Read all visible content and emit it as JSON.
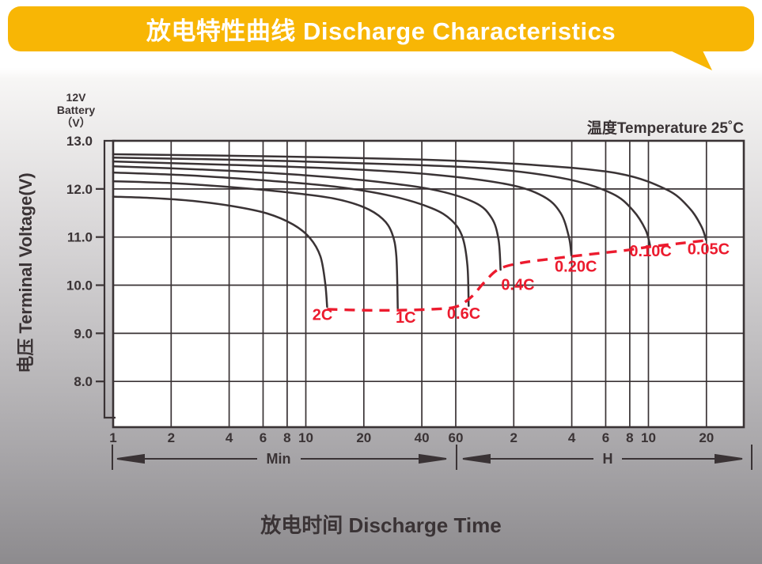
{
  "header": {
    "title": "放电特性曲线 Discharge Characteristics"
  },
  "colors": {
    "banner_yellow": "#F8B605",
    "ink": "#3A3335",
    "capacity_red": "#EC1B2E",
    "plot_bg": "#FFFFFF"
  },
  "chart_meta": {
    "battery_label": [
      "12V",
      "Battery",
      "（V）"
    ],
    "temperature_note": "温度Temperature 25˚C",
    "y_axis_title": "电压 Terminal Voltage(V)",
    "x_axis_title": "放电时间 Discharge Time",
    "minutes_range_label": "Min",
    "hours_range_label": "H"
  },
  "chart_data": {
    "type": "line",
    "title": "Discharge Characteristics, 12V battery, 25°C",
    "x_axis": {
      "scale": "log",
      "unit": "minutes (1–60) then hours (1–20)",
      "min": 1,
      "max": 1875,
      "ticks_minutes": [
        1,
        2,
        4,
        6,
        8,
        10,
        20,
        40,
        60,
        120,
        240,
        360,
        480,
        600,
        1200
      ],
      "tick_labels": [
        "1",
        "2",
        "4",
        "6",
        "8",
        "10",
        "20",
        "40",
        "60",
        "2",
        "4",
        "6",
        "8",
        "10",
        "20"
      ]
    },
    "y_axis": {
      "label": "Terminal Voltage (V)",
      "min": 7.05,
      "max": 13.0,
      "ticks": [
        13,
        12,
        11,
        10,
        9,
        8
      ],
      "tick_labels": [
        "13.0",
        "12.0",
        "11.0",
        "10.0",
        "9.0",
        "8.0"
      ]
    },
    "grid": true,
    "series": [
      {
        "name": "2C",
        "points_t_min_vs_V": [
          [
            1,
            11.84
          ],
          [
            1.6,
            11.81
          ],
          [
            2.6,
            11.75
          ],
          [
            4.2,
            11.64
          ],
          [
            6.3,
            11.49
          ],
          [
            8.6,
            11.26
          ],
          [
            10.5,
            10.98
          ],
          [
            11.9,
            10.6
          ],
          [
            12.6,
            10.05
          ],
          [
            12.9,
            9.55
          ]
        ]
      },
      {
        "name": "1C",
        "points_t_min_vs_V": [
          [
            1,
            12.16
          ],
          [
            2,
            12.12
          ],
          [
            4,
            12.04
          ],
          [
            8,
            11.93
          ],
          [
            14,
            11.8
          ],
          [
            20,
            11.62
          ],
          [
            25,
            11.38
          ],
          [
            28,
            11.08
          ],
          [
            29.5,
            10.6
          ],
          [
            30,
            9.52
          ]
        ]
      },
      {
        "name": "0.6C",
        "points_t_min_vs_V": [
          [
            1,
            12.34
          ],
          [
            2.5,
            12.28
          ],
          [
            6,
            12.18
          ],
          [
            14,
            12.05
          ],
          [
            28,
            11.85
          ],
          [
            45,
            11.6
          ],
          [
            57,
            11.35
          ],
          [
            65,
            11.0
          ],
          [
            69,
            10.4
          ],
          [
            70,
            9.57
          ]
        ]
      },
      {
        "name": "0.4C",
        "points_t_min_vs_V": [
          [
            1,
            12.47
          ],
          [
            3,
            12.4
          ],
          [
            8,
            12.31
          ],
          [
            20,
            12.18
          ],
          [
            45,
            11.99
          ],
          [
            75,
            11.72
          ],
          [
            92,
            11.4
          ],
          [
            100,
            10.95
          ],
          [
            102.5,
            10.32
          ]
        ]
      },
      {
        "name": "0.20C",
        "points_t_min_vs_V": [
          [
            1,
            12.57
          ],
          [
            4,
            12.5
          ],
          [
            15,
            12.42
          ],
          [
            45,
            12.3
          ],
          [
            110,
            12.1
          ],
          [
            170,
            11.85
          ],
          [
            210,
            11.5
          ],
          [
            232,
            11.0
          ],
          [
            239,
            10.62
          ]
        ]
      },
      {
        "name": "0.10C",
        "points_t_min_vs_V": [
          [
            1,
            12.65
          ],
          [
            5,
            12.6
          ],
          [
            25,
            12.52
          ],
          [
            90,
            12.42
          ],
          [
            230,
            12.2
          ],
          [
            390,
            11.9
          ],
          [
            500,
            11.55
          ],
          [
            580,
            11.15
          ],
          [
            612,
            10.82
          ]
        ]
      },
      {
        "name": "0.05C",
        "points_t_min_vs_V": [
          [
            1,
            12.72
          ],
          [
            6,
            12.68
          ],
          [
            40,
            12.61
          ],
          [
            150,
            12.5
          ],
          [
            420,
            12.32
          ],
          [
            750,
            11.98
          ],
          [
            980,
            11.6
          ],
          [
            1130,
            11.22
          ],
          [
            1195,
            10.94
          ]
        ]
      }
    ],
    "end_voltage_locus": {
      "name": "discharge-end voltage locus",
      "style": "dashed",
      "points_t_min_vs_V": [
        [
          12.9,
          9.5
        ],
        [
          20,
          9.48
        ],
        [
          30,
          9.48
        ],
        [
          45,
          9.5
        ],
        [
          60,
          9.55
        ],
        [
          72,
          9.75
        ],
        [
          84,
          10.05
        ],
        [
          100,
          10.33
        ],
        [
          130,
          10.46
        ],
        [
          190,
          10.55
        ],
        [
          280,
          10.63
        ],
        [
          450,
          10.72
        ],
        [
          615,
          10.8
        ],
        [
          880,
          10.87
        ],
        [
          1195,
          10.93
        ]
      ]
    },
    "rate_labels": [
      {
        "text": "2C",
        "t": 12.2,
        "v": 9.28
      },
      {
        "text": "1C",
        "t": 33,
        "v": 9.22
      },
      {
        "text": "0.6C",
        "t": 66,
        "v": 9.3
      },
      {
        "text": "0.4C",
        "t": 126,
        "v": 9.9
      },
      {
        "text": "0.20C",
        "t": 252,
        "v": 10.28
      },
      {
        "text": "0.10C",
        "t": 615,
        "v": 10.6
      },
      {
        "text": "0.05C",
        "t": 1230,
        "v": 10.64
      }
    ],
    "legend_position": "labels on chart"
  }
}
